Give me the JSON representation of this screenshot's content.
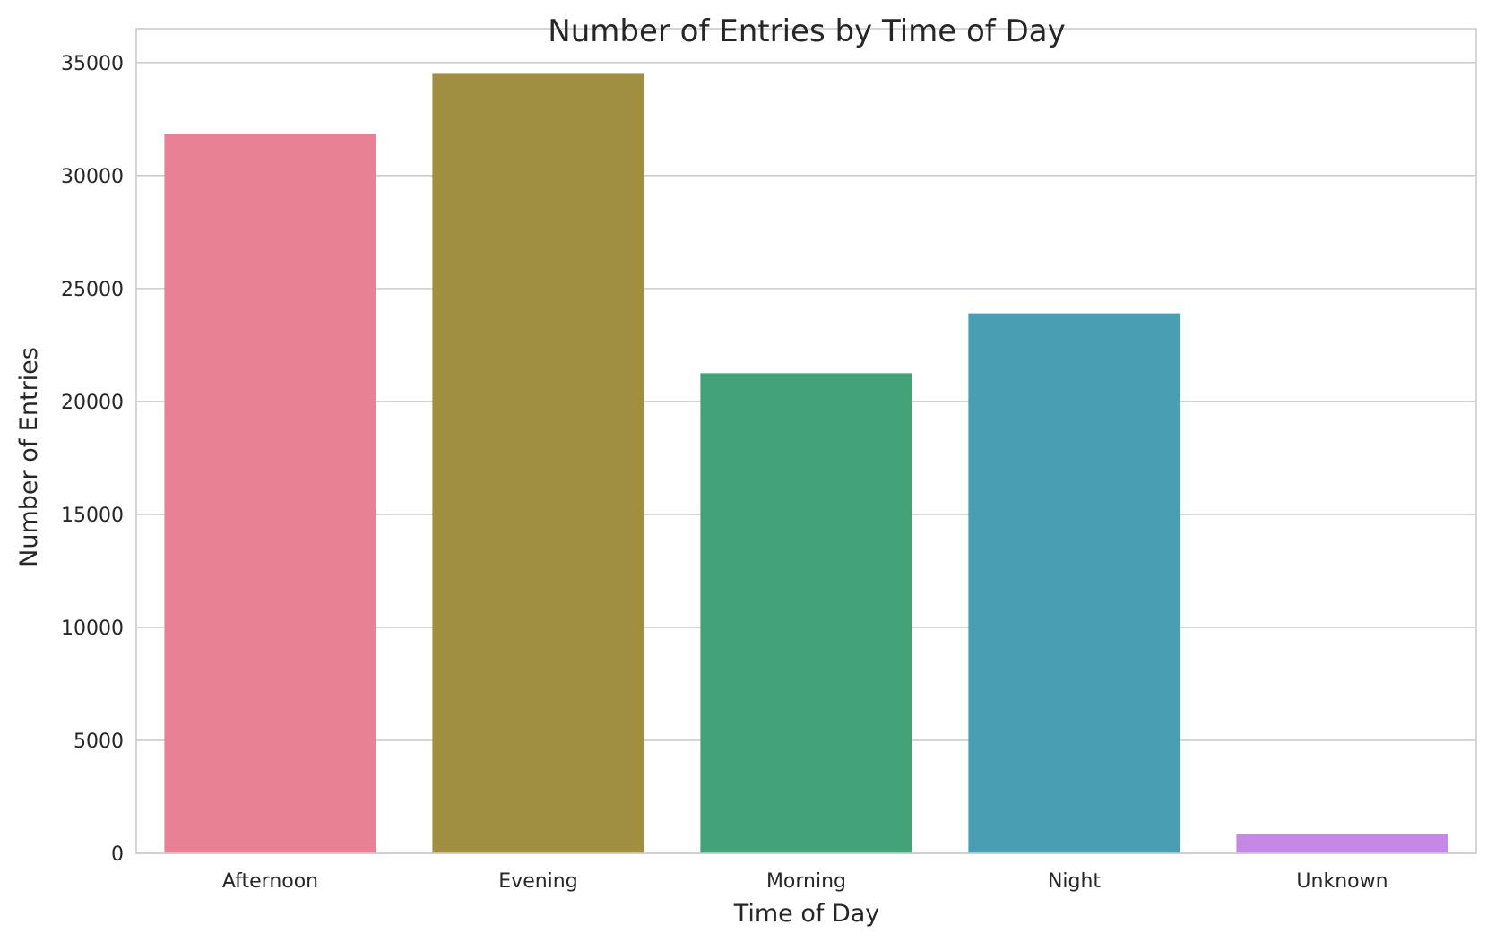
{
  "chart_data": {
    "type": "bar",
    "title": "Number of Entries by Time of Day",
    "xlabel": "Time of Day",
    "ylabel": "Number of Entries",
    "categories": [
      "Afternoon",
      "Evening",
      "Morning",
      "Night",
      "Unknown"
    ],
    "values": [
      31850,
      34500,
      21250,
      23900,
      850
    ],
    "colors": [
      "#e88193",
      "#a08f40",
      "#43a278",
      "#4a9eb3",
      "#c588e5"
    ],
    "ylim": [
      0,
      36500
    ],
    "yticks": [
      0,
      5000,
      10000,
      15000,
      20000,
      25000,
      30000,
      35000
    ],
    "grid": true,
    "legend": null
  }
}
